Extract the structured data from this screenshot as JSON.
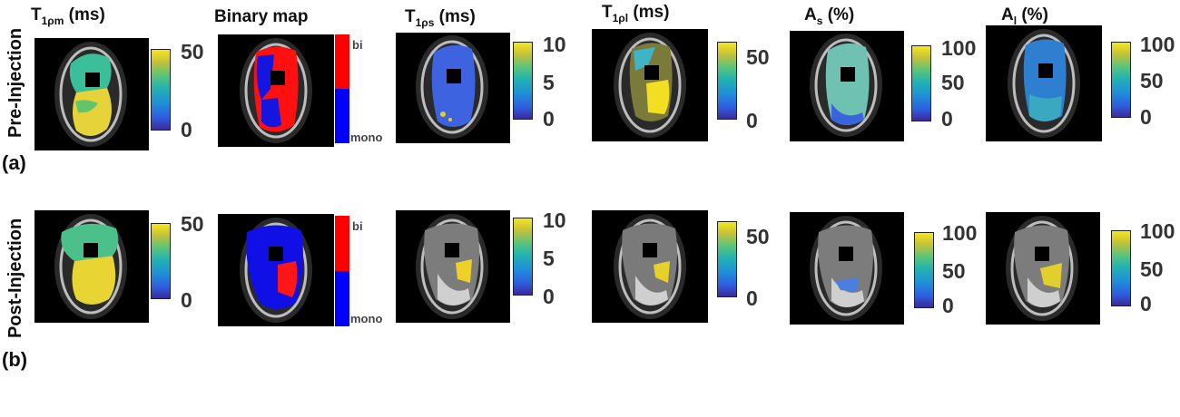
{
  "columns": [
    {
      "main": "T",
      "sub": "1ρm",
      "unit": " (ms)"
    },
    {
      "main": "Binary map",
      "sub": "",
      "unit": ""
    },
    {
      "main": "T",
      "sub": "1ρs",
      "unit": " (ms)"
    },
    {
      "main": "T",
      "sub": "1ρl",
      "unit": " (ms)"
    },
    {
      "main": "A",
      "sub": "s",
      "unit": " (%)"
    },
    {
      "main": "A",
      "sub": "l",
      "unit": " (%)"
    }
  ],
  "rows": [
    {
      "label": "Pre-Injection",
      "panel": "(a)"
    },
    {
      "label": "Post-Injection",
      "panel": "(b)"
    }
  ],
  "colorbars": {
    "t1rm": {
      "max": "50",
      "mid": "",
      "min": "0"
    },
    "t1rs": {
      "max": "10",
      "mid": "5",
      "min": "0"
    },
    "t1rl": {
      "max": "50",
      "mid": "",
      "min": "0"
    },
    "as": {
      "max": "100",
      "mid": "50",
      "min": "0"
    },
    "al": {
      "max": "100",
      "mid": "50",
      "min": "0"
    }
  },
  "binary_legend": {
    "top": "bi",
    "bottom": "mono",
    "top_color": "#ff0000",
    "bottom_color": "#0000ff"
  },
  "colormap": "parula"
}
